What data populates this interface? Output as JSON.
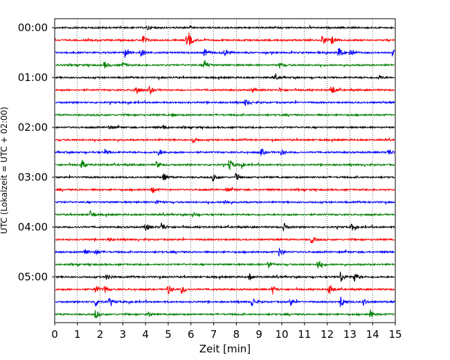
{
  "chart_data": {
    "type": "line",
    "title": "",
    "xlabel": "Zeit  [min]",
    "ylabel": "UTC (Lokalzeit = UTC + 02:00)",
    "xlim": [
      0,
      15
    ],
    "x_ticks": [
      "0",
      "1",
      "2",
      "3",
      "4",
      "5",
      "6",
      "7",
      "8",
      "9",
      "10",
      "11",
      "12",
      "13",
      "14",
      "15"
    ],
    "y_tick_labels": [
      "00:00",
      "01:00",
      "02:00",
      "03:00",
      "04:00",
      "05:00"
    ],
    "trace_interval_minutes": 15,
    "grid": "vertical dotted lines at each minute",
    "colors": [
      "#000000",
      "#ff0000",
      "#0000ff",
      "#008000"
    ],
    "series": [
      {
        "start": "00:00",
        "color": "#000000",
        "events": [
          [
            4.1,
            0.6
          ]
        ]
      },
      {
        "start": "00:15",
        "color": "#ff0000",
        "events": [
          [
            3.9,
            1.2
          ],
          [
            5.9,
            1.5
          ],
          [
            5.8,
            1.0
          ],
          [
            11.8,
            1.3
          ],
          [
            12.2,
            1.0
          ]
        ]
      },
      {
        "start": "00:30",
        "color": "#0000ff",
        "events": [
          [
            3.1,
            1.3
          ],
          [
            3.8,
            1.0
          ],
          [
            6.6,
            0.9
          ],
          [
            7.5,
            0.9
          ],
          [
            12.5,
            1.4
          ],
          [
            13.0,
            1.0
          ],
          [
            14.9,
            0.8
          ]
        ]
      },
      {
        "start": "00:45",
        "color": "#008000",
        "events": [
          [
            2.2,
            0.8
          ],
          [
            3.0,
            0.6
          ],
          [
            6.6,
            1.4
          ],
          [
            9.9,
            0.6
          ]
        ]
      },
      {
        "start": "01:00",
        "color": "#000000",
        "events": [
          [
            9.7,
            0.6
          ],
          [
            14.3,
            0.5
          ]
        ]
      },
      {
        "start": "01:15",
        "color": "#ff0000",
        "events": [
          [
            3.6,
            1.2
          ],
          [
            4.2,
            0.9
          ],
          [
            8.7,
            0.6
          ],
          [
            9.9,
            0.5
          ],
          [
            12.2,
            1.3
          ]
        ]
      },
      {
        "start": "01:30",
        "color": "#0000ff",
        "events": [
          [
            8.4,
            0.8
          ]
        ]
      },
      {
        "start": "01:45",
        "color": "#008000",
        "events": [
          [
            5.2,
            0.3
          ]
        ]
      },
      {
        "start": "02:00",
        "color": "#000000",
        "events": [
          [
            2.4,
            0.5
          ],
          [
            4.8,
            0.5
          ]
        ]
      },
      {
        "start": "02:15",
        "color": "#ff0000",
        "events": [
          [
            6.1,
            0.7
          ]
        ]
      },
      {
        "start": "02:30",
        "color": "#0000ff",
        "events": [
          [
            2.2,
            0.7
          ],
          [
            4.6,
            0.8
          ],
          [
            9.1,
            0.9
          ],
          [
            10.0,
            0.6
          ],
          [
            14.7,
            0.9
          ]
        ]
      },
      {
        "start": "02:45",
        "color": "#008000",
        "events": [
          [
            1.2,
            1.1
          ],
          [
            4.5,
            0.9
          ],
          [
            7.7,
            1.4
          ],
          [
            8.2,
            0.6
          ]
        ]
      },
      {
        "start": "03:00",
        "color": "#000000",
        "events": [
          [
            4.8,
            0.9
          ],
          [
            7.0,
            1.0
          ],
          [
            8.0,
            0.9
          ]
        ]
      },
      {
        "start": "03:15",
        "color": "#ff0000",
        "events": [
          [
            4.3,
            0.8
          ],
          [
            7.6,
            0.5
          ]
        ]
      },
      {
        "start": "03:30",
        "color": "#0000ff",
        "events": [
          [
            4.5,
            0.6
          ],
          [
            7.5,
            0.6
          ]
        ]
      },
      {
        "start": "03:45",
        "color": "#008000",
        "events": [
          [
            1.6,
            1.0
          ],
          [
            6.1,
            0.5
          ]
        ]
      },
      {
        "start": "04:00",
        "color": "#000000",
        "events": [
          [
            4.0,
            1.1
          ],
          [
            4.7,
            1.3
          ],
          [
            10.1,
            1.0
          ],
          [
            13.1,
            0.8
          ]
        ]
      },
      {
        "start": "04:15",
        "color": "#ff0000",
        "events": [
          [
            11.3,
            0.9
          ],
          [
            2.4,
            0.4
          ]
        ]
      },
      {
        "start": "04:30",
        "color": "#0000ff",
        "events": [
          [
            1.3,
            1.2
          ],
          [
            1.8,
            0.8
          ],
          [
            9.9,
            1.2
          ]
        ]
      },
      {
        "start": "04:45",
        "color": "#008000",
        "events": [
          [
            9.4,
            1.0
          ],
          [
            11.6,
            1.3
          ]
        ]
      },
      {
        "start": "05:00",
        "color": "#000000",
        "events": [
          [
            2.3,
            1.0
          ],
          [
            8.6,
            0.8
          ],
          [
            12.6,
            1.5
          ],
          [
            13.2,
            1.2
          ]
        ]
      },
      {
        "start": "05:15",
        "color": "#ff0000",
        "events": [
          [
            1.8,
            1.1
          ],
          [
            2.2,
            0.8
          ],
          [
            5.0,
            1.2
          ],
          [
            5.6,
            1.0
          ],
          [
            9.6,
            1.1
          ],
          [
            12.1,
            1.4
          ]
        ]
      },
      {
        "start": "05:30",
        "color": "#0000ff",
        "events": [
          [
            1.8,
            1.2
          ],
          [
            2.4,
            0.9
          ],
          [
            8.7,
            1.2
          ],
          [
            10.4,
            0.8
          ],
          [
            12.6,
            1.5
          ],
          [
            13.6,
            0.9
          ]
        ]
      },
      {
        "start": "05:45",
        "color": "#008000",
        "events": [
          [
            1.8,
            1.1
          ],
          [
            4.1,
            0.8
          ],
          [
            13.9,
            1.1
          ]
        ]
      }
    ]
  }
}
